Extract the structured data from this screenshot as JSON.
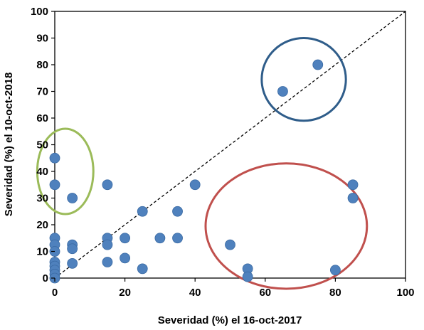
{
  "chart_data": {
    "type": "scatter",
    "title": "",
    "xlabel": "Severidad (%) el 16-oct-2017",
    "ylabel": "Severidad (%) el 10-oct-2018",
    "xlim": [
      0,
      100
    ],
    "ylim": [
      0,
      100
    ],
    "x_ticks": [
      "0",
      "20",
      "40",
      "60",
      "80",
      "100"
    ],
    "y_ticks": [
      "0",
      "10",
      "20",
      "30",
      "40",
      "50",
      "60",
      "70",
      "80",
      "90",
      "100"
    ],
    "grid": false,
    "marker_color": "#4f81bd",
    "reference_line": {
      "x": [
        0,
        100
      ],
      "y": [
        0,
        100
      ],
      "style": "dashed",
      "color": "#000000"
    },
    "points": [
      {
        "x": 0,
        "y": 45
      },
      {
        "x": 0,
        "y": 35
      },
      {
        "x": 5,
        "y": 30
      },
      {
        "x": 15,
        "y": 35
      },
      {
        "x": 40,
        "y": 35
      },
      {
        "x": 25,
        "y": 25
      },
      {
        "x": 35,
        "y": 25
      },
      {
        "x": 0,
        "y": 15
      },
      {
        "x": 0,
        "y": 12.5
      },
      {
        "x": 0,
        "y": 10
      },
      {
        "x": 0,
        "y": 6
      },
      {
        "x": 0,
        "y": 4.5
      },
      {
        "x": 0,
        "y": 3
      },
      {
        "x": 0,
        "y": 1.5
      },
      {
        "x": 0,
        "y": 0
      },
      {
        "x": 5,
        "y": 12.5
      },
      {
        "x": 5,
        "y": 11
      },
      {
        "x": 5,
        "y": 5.5
      },
      {
        "x": 15,
        "y": 15
      },
      {
        "x": 15,
        "y": 12.5
      },
      {
        "x": 15,
        "y": 6
      },
      {
        "x": 20,
        "y": 15
      },
      {
        "x": 20,
        "y": 7.5
      },
      {
        "x": 25,
        "y": 3.5
      },
      {
        "x": 30,
        "y": 15
      },
      {
        "x": 35,
        "y": 15
      },
      {
        "x": 50,
        "y": 12.5
      },
      {
        "x": 55,
        "y": 3.5
      },
      {
        "x": 55,
        "y": 0.5
      },
      {
        "x": 65,
        "y": 70
      },
      {
        "x": 75,
        "y": 80
      },
      {
        "x": 80,
        "y": 3
      },
      {
        "x": 85,
        "y": 35
      },
      {
        "x": 85,
        "y": 30
      }
    ],
    "annotations": [
      {
        "shape": "ellipse",
        "color": "#9bbb59",
        "cx": 3,
        "cy": 40,
        "rx": 8,
        "ry": 16
      },
      {
        "shape": "ellipse",
        "color": "#2f5d8a",
        "cx": 71,
        "cy": 74.5,
        "rx": 12,
        "ry": 15.5
      },
      {
        "shape": "ellipse",
        "color": "#c0504d",
        "cx": 66,
        "cy": 19.5,
        "rx": 23,
        "ry": 23.5
      }
    ]
  }
}
